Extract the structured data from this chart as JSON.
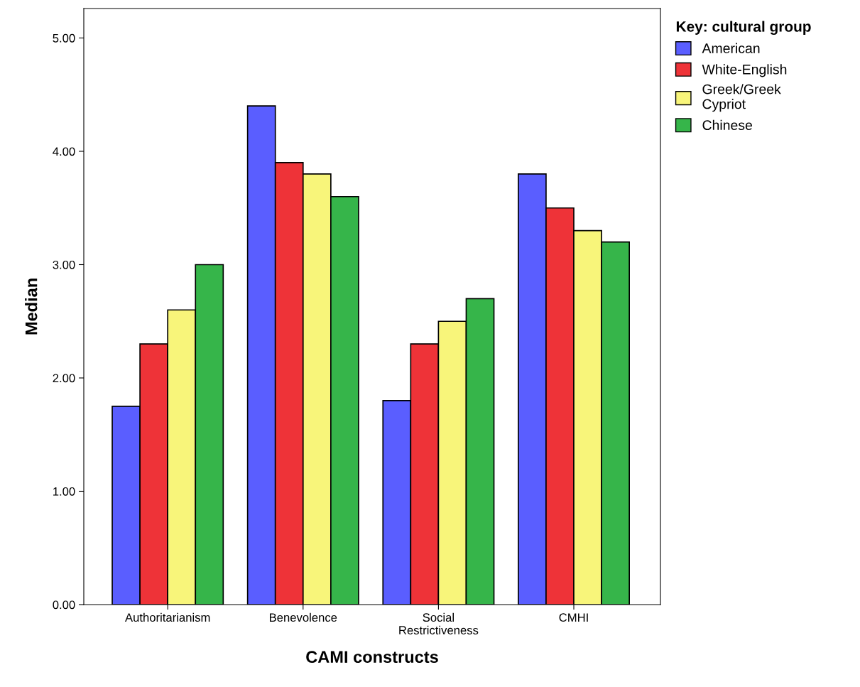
{
  "chart_data": {
    "type": "bar",
    "xlabel": "CAMI constructs",
    "ylabel": "Median",
    "legend_title": "Key: cultural group",
    "legend": "top right",
    "grid": false,
    "categories": [
      "Authoritarianism",
      "Benevolence",
      "Social\nRestrictiveness",
      "CMHI"
    ],
    "ylim": [
      0,
      5.26
    ],
    "yticks": [
      {
        "value": 0,
        "label": "0.00"
      },
      {
        "value": 1,
        "label": "1.00"
      },
      {
        "value": 2,
        "label": "2.00"
      },
      {
        "value": 3,
        "label": "3.00"
      },
      {
        "value": 4,
        "label": "4.00"
      },
      {
        "value": 5,
        "label": "5.00"
      }
    ],
    "series": [
      {
        "name": "American",
        "color": "#5a5eff",
        "values": [
          1.75,
          4.4,
          1.8,
          3.8
        ]
      },
      {
        "name": "White-English",
        "color": "#ee3338",
        "values": [
          2.3,
          3.9,
          2.3,
          3.5
        ]
      },
      {
        "name": "Greek/Greek\nCypriot",
        "color": "#f8f57a",
        "values": [
          2.6,
          3.8,
          2.5,
          3.3
        ]
      },
      {
        "name": "Chinese",
        "color": "#36b54a",
        "values": [
          3.0,
          3.6,
          2.7,
          3.2
        ]
      }
    ]
  }
}
